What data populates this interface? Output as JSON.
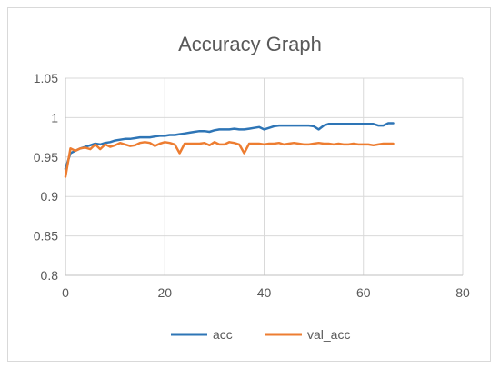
{
  "chart_data": {
    "type": "line",
    "title": "Accuracy Graph",
    "xlabel": "",
    "ylabel": "",
    "xlim": [
      0,
      80
    ],
    "ylim": [
      0.8,
      1.05
    ],
    "x_ticks": [
      0,
      20,
      40,
      60,
      80
    ],
    "x_tick_labels": [
      "0",
      "20",
      "40",
      "60",
      "80"
    ],
    "y_ticks": [
      0.8,
      0.85,
      0.9,
      0.95,
      1.0,
      1.05
    ],
    "y_tick_labels": [
      "0.8",
      "0.85",
      "0.9",
      "0.95",
      "1",
      "1.05"
    ],
    "grid": true,
    "legend_position": "bottom",
    "series": [
      {
        "name": "acc",
        "color": "#2e75b6",
        "x": [
          0,
          1,
          2,
          3,
          4,
          5,
          6,
          7,
          8,
          9,
          10,
          11,
          12,
          13,
          14,
          15,
          16,
          17,
          18,
          19,
          20,
          21,
          22,
          23,
          24,
          25,
          26,
          27,
          28,
          29,
          30,
          31,
          32,
          33,
          34,
          35,
          36,
          37,
          38,
          39,
          40,
          41,
          42,
          43,
          44,
          45,
          46,
          47,
          48,
          49,
          50,
          51,
          52,
          53,
          54,
          55,
          56,
          57,
          58,
          59,
          60,
          61,
          62,
          63,
          64,
          65,
          66
        ],
        "values": [
          0.935,
          0.955,
          0.958,
          0.961,
          0.963,
          0.965,
          0.967,
          0.966,
          0.968,
          0.969,
          0.971,
          0.972,
          0.973,
          0.973,
          0.974,
          0.975,
          0.975,
          0.975,
          0.976,
          0.977,
          0.977,
          0.978,
          0.978,
          0.979,
          0.98,
          0.981,
          0.982,
          0.983,
          0.983,
          0.982,
          0.984,
          0.985,
          0.985,
          0.985,
          0.986,
          0.985,
          0.985,
          0.986,
          0.987,
          0.988,
          0.985,
          0.987,
          0.989,
          0.99,
          0.99,
          0.99,
          0.99,
          0.99,
          0.99,
          0.99,
          0.989,
          0.985,
          0.99,
          0.992,
          0.992,
          0.992,
          0.992,
          0.992,
          0.992,
          0.992,
          0.992,
          0.992,
          0.992,
          0.99,
          0.99,
          0.993,
          0.993
        ]
      },
      {
        "name": "val_acc",
        "color": "#ed7d31",
        "x": [
          0,
          1,
          2,
          3,
          4,
          5,
          6,
          7,
          8,
          9,
          10,
          11,
          12,
          13,
          14,
          15,
          16,
          17,
          18,
          19,
          20,
          21,
          22,
          23,
          24,
          25,
          26,
          27,
          28,
          29,
          30,
          31,
          32,
          33,
          34,
          35,
          36,
          37,
          38,
          39,
          40,
          41,
          42,
          43,
          44,
          45,
          46,
          47,
          48,
          49,
          50,
          51,
          52,
          53,
          54,
          55,
          56,
          57,
          58,
          59,
          60,
          61,
          62,
          63,
          64,
          65,
          66
        ],
        "values": [
          0.925,
          0.961,
          0.958,
          0.961,
          0.962,
          0.96,
          0.966,
          0.96,
          0.966,
          0.963,
          0.965,
          0.968,
          0.966,
          0.964,
          0.965,
          0.968,
          0.969,
          0.968,
          0.964,
          0.967,
          0.969,
          0.968,
          0.966,
          0.955,
          0.967,
          0.967,
          0.967,
          0.967,
          0.968,
          0.965,
          0.969,
          0.966,
          0.966,
          0.969,
          0.968,
          0.966,
          0.955,
          0.967,
          0.967,
          0.967,
          0.966,
          0.967,
          0.967,
          0.968,
          0.966,
          0.967,
          0.968,
          0.967,
          0.966,
          0.966,
          0.967,
          0.968,
          0.967,
          0.967,
          0.966,
          0.967,
          0.966,
          0.966,
          0.967,
          0.966,
          0.966,
          0.966,
          0.965,
          0.966,
          0.967,
          0.967,
          0.967
        ]
      }
    ]
  }
}
